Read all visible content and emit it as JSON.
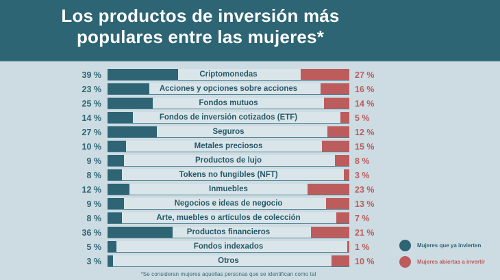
{
  "title": {
    "line1": "Los productos de inversión más",
    "line2": "populares entre las mujeres*"
  },
  "footnote": "*Se consideran mujeres aquellas personas que se identifican como tal",
  "legend": [
    {
      "label": "Mujeres que ya invierten",
      "color": "#2e6474"
    },
    {
      "label": "Mujeres abiertas a invertir",
      "color": "#bd5c5c"
    }
  ],
  "colors": {
    "header_background": "#2d6575",
    "page_background": "#ccdce2",
    "track_background": "#d9e5e9",
    "track_underline": "#4f7f92",
    "bar_already_invest": "#2e6474",
    "bar_open_to_invest": "#bd5c5c",
    "title_text": "#ffffff"
  },
  "chart_data": {
    "type": "bar",
    "orientation": "horizontal-diverging",
    "title": "Los productos de inversión más populares entre las mujeres*",
    "value_suffix": " %",
    "categories": [
      "Criptomonedas",
      "Acciones y opciones sobre acciones",
      "Fondos mutuos",
      "Fondos de inversión cotizados (ETF)",
      "Seguros",
      "Metales preciosos",
      "Productos de lujo",
      "Tokens no fungibles (NFT)",
      "Inmuebles",
      "Negocios e ideas de negocio",
      "Arte, muebles o artículos de colección",
      "Productos financieros",
      "Fondos indexados",
      "Otros"
    ],
    "series": [
      {
        "name": "Mujeres que ya invierten",
        "values": [
          39,
          23,
          25,
          14,
          27,
          10,
          9,
          8,
          12,
          9,
          8,
          36,
          5,
          3
        ]
      },
      {
        "name": "Mujeres abiertas a invertir",
        "values": [
          27,
          16,
          14,
          5,
          12,
          15,
          8,
          3,
          23,
          13,
          7,
          21,
          1,
          10
        ]
      }
    ],
    "legend_position": "bottom-right",
    "grid": false
  }
}
